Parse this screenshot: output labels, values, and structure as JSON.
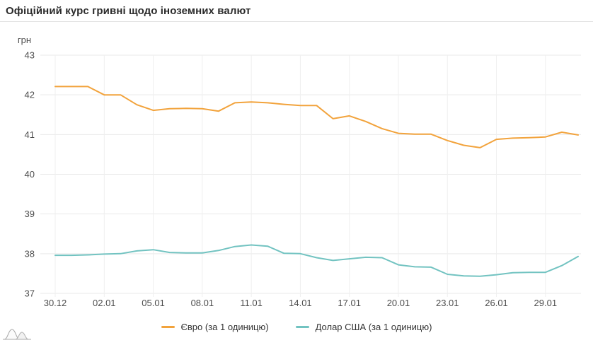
{
  "header": {
    "title": "Офіційний курс гривні щодо іноземних валют"
  },
  "chart_data": {
    "type": "line",
    "title": "Офіційний курс гривні щодо іноземних валют",
    "y_unit": "грн",
    "ylim": [
      37,
      43
    ],
    "y_ticks": [
      43,
      42,
      41,
      40,
      39,
      38,
      37
    ],
    "grid": "both",
    "legend_position": "bottom",
    "x_tick_every": 3,
    "x_tick_labels": [
      "30.12",
      "02.01",
      "05.01",
      "08.01",
      "11.01",
      "14.01",
      "17.01",
      "20.01",
      "23.01",
      "26.01",
      "29.01"
    ],
    "categories": [
      "30.12",
      "31.12",
      "01.01",
      "02.01",
      "03.01",
      "04.01",
      "05.01",
      "06.01",
      "07.01",
      "08.01",
      "09.01",
      "10.01",
      "11.01",
      "12.01",
      "13.01",
      "14.01",
      "15.01",
      "16.01",
      "17.01",
      "18.01",
      "19.01",
      "20.01",
      "21.01",
      "22.01",
      "23.01",
      "24.01",
      "25.01",
      "26.01",
      "27.01",
      "28.01",
      "29.01",
      "30.01",
      "31.01"
    ],
    "series": [
      {
        "name": "Євро (за 1 одиницю)",
        "color": "#f2a33c",
        "values": [
          42.21,
          42.21,
          42.21,
          42.0,
          42.0,
          41.75,
          41.61,
          41.65,
          41.66,
          41.65,
          41.59,
          41.8,
          41.82,
          41.8,
          41.76,
          41.73,
          41.73,
          41.4,
          41.47,
          41.33,
          41.15,
          41.03,
          41.01,
          41.01,
          40.85,
          40.73,
          40.67,
          40.88,
          40.91,
          40.92,
          40.94,
          41.06,
          40.99
        ]
      },
      {
        "name": "Долар США (за 1 одиницю)",
        "color": "#72c3c1",
        "values": [
          37.96,
          37.96,
          37.97,
          37.99,
          38.0,
          38.07,
          38.1,
          38.03,
          38.02,
          38.02,
          38.08,
          38.18,
          38.22,
          38.19,
          38.01,
          38.0,
          37.9,
          37.83,
          37.87,
          37.91,
          37.9,
          37.72,
          37.67,
          37.66,
          37.48,
          37.44,
          37.43,
          37.47,
          37.52,
          37.53,
          37.53,
          37.7,
          37.93
        ]
      }
    ],
    "colors": {
      "grid": "#e9e9e9",
      "grid_vertical": "#efefef",
      "tick_text": "#4d4d4d"
    }
  },
  "watermark": {
    "icon_name": "hills-sparkline-logo"
  }
}
